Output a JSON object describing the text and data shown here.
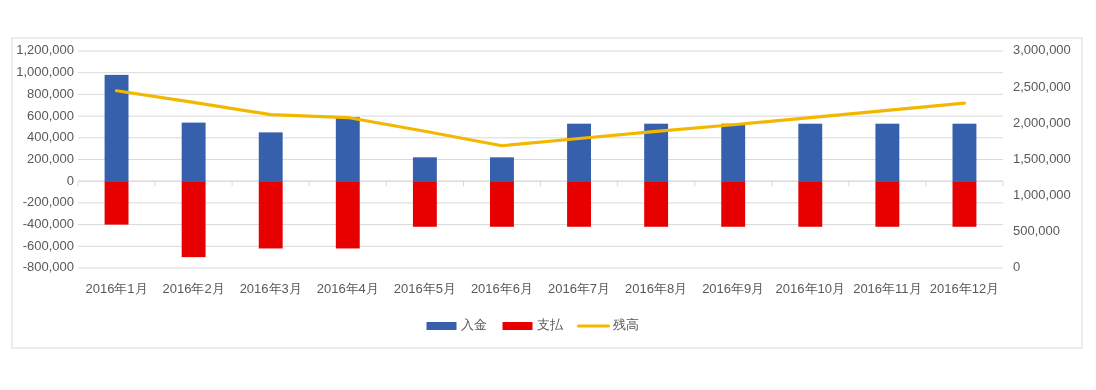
{
  "chart_data": {
    "type": "bar",
    "stacked": true,
    "grid": "y",
    "legend": "bottom",
    "categories": [
      "2016年1月",
      "2016年2月",
      "2016年3月",
      "2016年4月",
      "2016年5月",
      "2016年6月",
      "2016年7月",
      "2016年8月",
      "2016年9月",
      "2016年10月",
      "2016年11月",
      "2016年12月"
    ],
    "series": [
      {
        "name": "入金",
        "color": "#365fac",
        "values": [
          980000,
          540000,
          450000,
          590000,
          220000,
          220000,
          530000,
          530000,
          530000,
          530000,
          530000,
          530000
        ]
      },
      {
        "name": "支払",
        "color": "#e60000",
        "values": [
          -400000,
          -700000,
          -620000,
          -620000,
          -420000,
          -420000,
          -420000,
          -420000,
          -420000,
          -420000,
          -420000,
          -420000
        ]
      },
      {
        "name": "残高",
        "type": "line",
        "axis": "y2",
        "color": "#f2b800",
        "values": [
          2450000,
          2290000,
          2120000,
          2080000,
          1890000,
          1690000,
          1790000,
          1890000,
          1980000,
          2080000,
          2180000,
          2280000
        ]
      }
    ],
    "ylim": [
      -800000,
      1200000
    ],
    "yticks": [
      {
        "value": -800000,
        "label": "-800,000"
      },
      {
        "value": -600000,
        "label": "-600,000"
      },
      {
        "value": -400000,
        "label": "-400,000"
      },
      {
        "value": -200000,
        "label": "-200,000"
      },
      0,
      {
        "value": 200000,
        "label": "200,000"
      },
      {
        "value": 400000,
        "label": "400,000"
      },
      {
        "value": 600000,
        "label": "600,000"
      },
      {
        "value": 800000,
        "label": "800,000"
      },
      {
        "value": 1000000,
        "label": "1,000,000"
      },
      {
        "value": 1200000,
        "label": "1,200,000"
      }
    ],
    "y2lim": [
      0,
      3000000
    ],
    "y2ticks": [
      0,
      {
        "value": 500000,
        "label": "500,000"
      },
      {
        "value": 1000000,
        "label": "1,000,000"
      },
      {
        "value": 1500000,
        "label": "1,500,000"
      },
      {
        "value": 2000000,
        "label": "2,000,000"
      },
      {
        "value": 2500000,
        "label": "2,500,000"
      },
      {
        "value": 3000000,
        "label": "3,000,000"
      }
    ]
  }
}
